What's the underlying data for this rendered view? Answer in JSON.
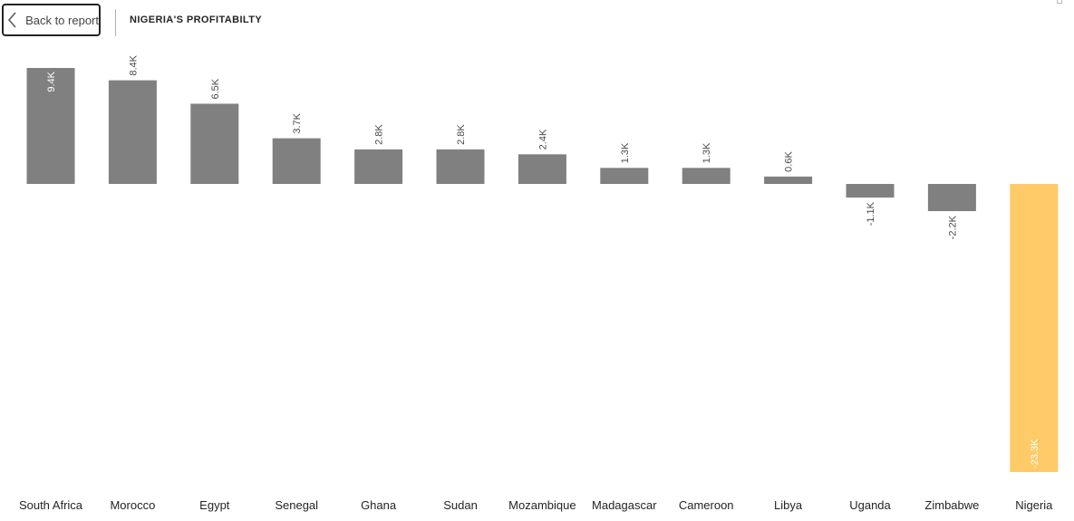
{
  "header": {
    "back_label": "Back to report",
    "title": "NIGERIA'S PROFITABILTY"
  },
  "colors": {
    "bar": "#808080",
    "highlight": "#fecb68",
    "label": "#4a4a4a",
    "inner_label": "#ffffff"
  },
  "chart_data": {
    "type": "bar",
    "categories": [
      "South Africa",
      "Morocco",
      "Egypt",
      "Senegal",
      "Ghana",
      "Sudan",
      "Mozambique",
      "Madagascar",
      "Cameroon",
      "Libya",
      "Uganda",
      "Zimbabwe",
      "Nigeria"
    ],
    "values": [
      9.4,
      8.4,
      6.5,
      3.7,
      2.8,
      2.8,
      2.4,
      1.3,
      1.3,
      0.6,
      -1.1,
      -2.2,
      -23.3
    ],
    "data_labels": [
      "9.4K",
      "8.4K",
      "6.5K",
      "3.7K",
      "2.8K",
      "2.8K",
      "2.4K",
      "1.3K",
      "1.3K",
      "0.6K",
      "-1.1K",
      "-2.2K",
      "-23.3K"
    ],
    "inside_label_indices": [
      0,
      12
    ],
    "highlight_index": 12,
    "unit": "K",
    "ylim": [
      -23.3,
      9.4
    ],
    "grid": false,
    "title": "NIGERIA'S PROFITABILTY"
  }
}
